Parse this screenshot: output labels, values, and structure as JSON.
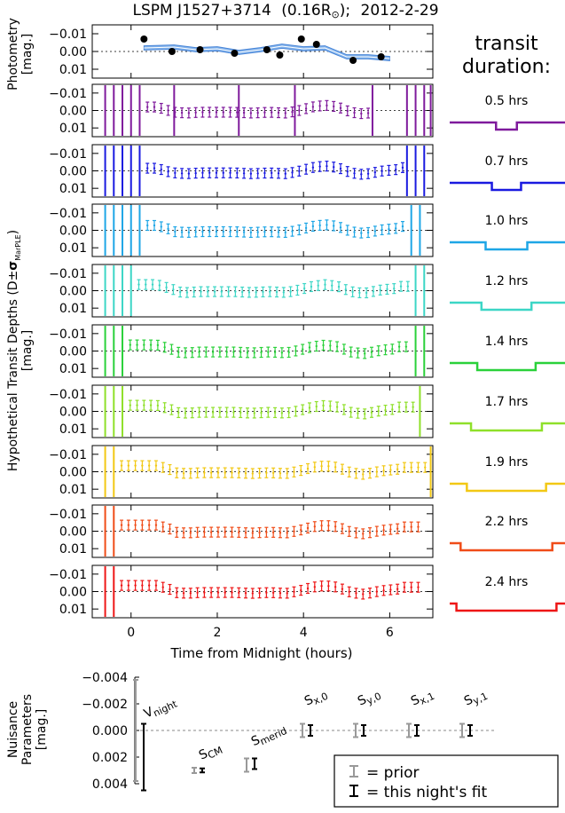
{
  "title": {
    "target": "LSPM J1527+3714",
    "radius": "(0.16R",
    "radius_symbol": "⊙",
    "radius_close": ");",
    "date": "2012-2-29"
  },
  "labels": {
    "photometry_ylabel": "Photometry",
    "photometry_unit": "[mag.]",
    "depths_ylabel_prefix": "Hypothetical Transit Depths (D±",
    "depths_ylabel_sigma": "σ",
    "depths_ylabel_sub": "MarPLE",
    "depths_ylabel_suffix": ")",
    "depths_unit": "[mag.]",
    "xlabel": "Time from Midnight (hours)",
    "duration_title_1": "transit",
    "duration_title_2": "duration:",
    "nuisance_ylabel_1": "Nuisance",
    "nuisance_ylabel_2": "Parameters",
    "nuisance_unit": "[mag.]"
  },
  "axes": {
    "time_xlim": [
      -0.9,
      7.0
    ],
    "time_ticks": [
      "0",
      "2",
      "4",
      "6"
    ],
    "mag_ylim": [
      0.015,
      -0.015
    ],
    "mag_ticks": [
      "−0.01",
      "0.00",
      "0.01"
    ],
    "nuis_ylim": [
      0.004,
      -0.004
    ],
    "nuis_ticks": [
      "−0.004",
      "−0.002",
      "0.000",
      "0.002",
      "0.004"
    ]
  },
  "legend": {
    "prior": "= prior",
    "fit": "= this night's fit"
  },
  "chart_data": [
    {
      "type": "scatter",
      "name": "photometry",
      "x": [
        0.3,
        0.95,
        1.6,
        2.4,
        3.15,
        3.45,
        3.95,
        4.3,
        5.15,
        5.8
      ],
      "y": [
        -0.007,
        0.0,
        -0.001,
        0.001,
        -0.001,
        0.002,
        -0.007,
        -0.004,
        0.005,
        0.003
      ],
      "model_band": {
        "x": [
          0.3,
          1.0,
          1.5,
          2.0,
          2.5,
          3.0,
          3.5,
          4.0,
          4.5,
          5.0,
          5.5,
          6.0
        ],
        "y": [
          -0.002,
          -0.0025,
          -0.001,
          -0.0015,
          0.0005,
          -0.001,
          -0.003,
          -0.0015,
          -0.002,
          0.003,
          0.003,
          0.004
        ],
        "half_width": 0.0012
      }
    },
    {
      "type": "line",
      "name": "hypothetical transit depths",
      "panels": [
        {
          "duration": "0.5 hrs",
          "color": "#7f1a9c",
          "offset": 0.0,
          "vlines": [
            -0.6,
            -0.4,
            -0.2,
            0.0,
            0.2,
            1.0,
            2.5,
            3.8,
            5.6,
            6.4,
            6.6,
            6.8,
            6.95
          ]
        },
        {
          "duration": "0.7 hrs",
          "color": "#1a1ae0",
          "offset": 0.0005,
          "vlines": [
            -0.6,
            -0.4,
            -0.2,
            0.0,
            0.2,
            6.4,
            6.6,
            6.8
          ]
        },
        {
          "duration": "1.0 hrs",
          "color": "#1ea6e6",
          "offset": -0.0008,
          "vlines": [
            -0.6,
            -0.4,
            -0.2,
            0.0,
            0.2,
            6.5,
            6.7
          ]
        },
        {
          "duration": "1.2 hrs",
          "color": "#3cd6c6",
          "offset": -0.0015,
          "vlines": [
            -0.6,
            -0.4,
            -0.2,
            0.0,
            6.6,
            6.8
          ]
        },
        {
          "duration": "1.4 hrs",
          "color": "#2ad13a",
          "offset": -0.0015,
          "vlines": [
            -0.6,
            -0.4,
            -0.2,
            6.6,
            6.8
          ]
        },
        {
          "duration": "1.7 hrs",
          "color": "#8fe02a",
          "offset": -0.0015,
          "vlines": [
            -0.6,
            -0.4,
            -0.2,
            6.7
          ]
        },
        {
          "duration": "1.9 hrs",
          "color": "#f2c814",
          "offset": -0.0015,
          "vlines": [
            -0.6,
            -0.4,
            6.95
          ]
        },
        {
          "duration": "2.2 hrs",
          "color": "#f04c18",
          "offset": -0.0015,
          "vlines": [
            -0.6,
            -0.4
          ]
        },
        {
          "duration": "2.4 hrs",
          "color": "#ee1616",
          "offset": -0.0015,
          "vlines": [
            -0.6,
            -0.4
          ]
        }
      ],
      "profile": {
        "x": [
          0.3,
          0.6,
          1.0,
          1.3,
          1.6,
          2.0,
          2.4,
          2.8,
          3.2,
          3.6,
          3.9,
          4.2,
          4.5,
          4.8,
          5.1,
          5.4,
          5.8,
          6.2
        ],
        "y": [
          -0.002,
          -0.002,
          0.001,
          0.0015,
          0.001,
          0.001,
          0.001,
          0.0015,
          0.001,
          0.0015,
          0.0,
          -0.002,
          -0.003,
          -0.002,
          0.001,
          0.002,
          0.0,
          -0.001
        ]
      }
    },
    {
      "type": "scatter",
      "name": "nuisance parameters",
      "categories": [
        "V_night",
        "S_CM",
        "S_merid",
        "S_x,0",
        "S_y,0",
        "S_x,1",
        "S_y,1"
      ],
      "category_labels": [
        {
          "main": "V",
          "sub": "night"
        },
        {
          "main": "S",
          "sub": "CM"
        },
        {
          "main": "S",
          "sub": "merid"
        },
        {
          "main": "S",
          "sub": "x,0"
        },
        {
          "main": "S",
          "sub": "y,0"
        },
        {
          "main": "S",
          "sub": "x,1"
        },
        {
          "main": "S",
          "sub": "y,1"
        }
      ],
      "prior": {
        "value": [
          0.0,
          0.003,
          0.0026,
          0.0,
          0.0,
          0.0,
          0.0
        ],
        "err": [
          0.0038,
          0.0002,
          0.0005,
          0.0005,
          0.0005,
          0.0005,
          0.0005
        ]
      },
      "fit": {
        "value": [
          0.002,
          0.003,
          0.0025,
          0.0,
          0.0,
          0.0,
          0.0
        ],
        "err": [
          0.0025,
          0.00015,
          0.0004,
          0.0004,
          0.0004,
          0.0004,
          0.0004
        ]
      }
    }
  ],
  "colors": {
    "photometry_band": "#7fb0ea",
    "photometry_band_edge": "#4a86d8",
    "prior": "#999999",
    "fit": "#000000"
  }
}
